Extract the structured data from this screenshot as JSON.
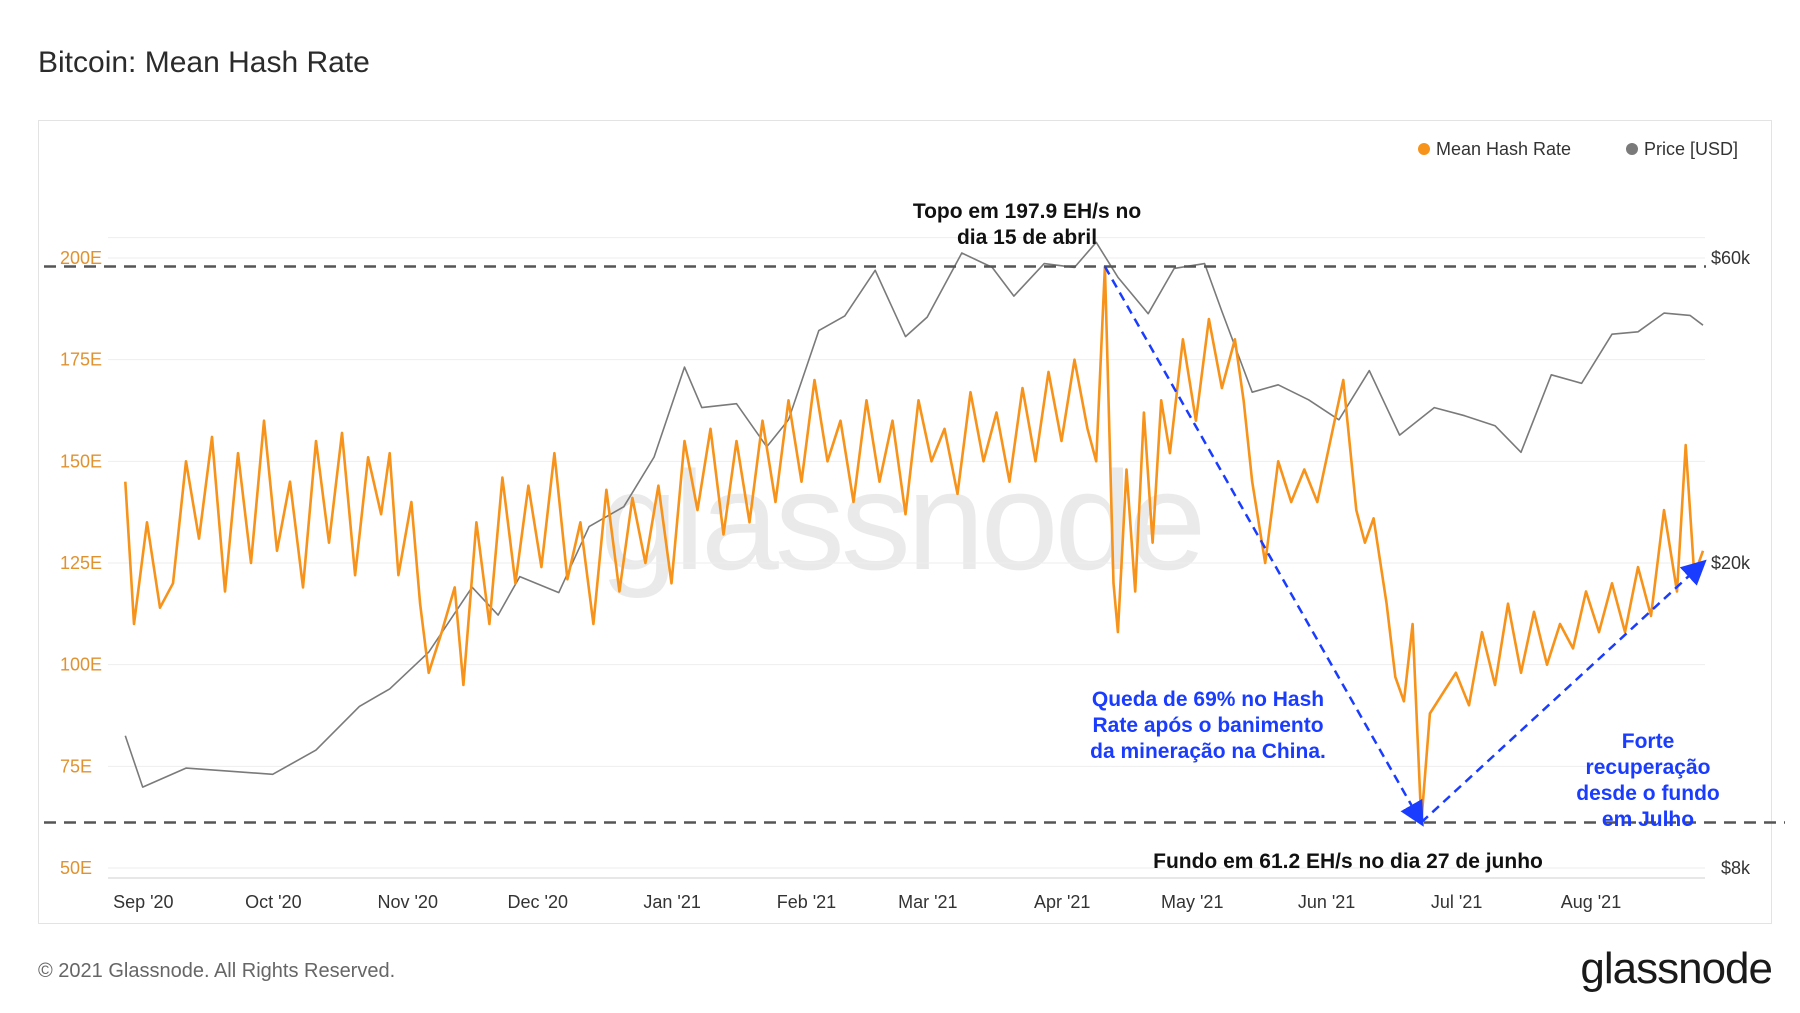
{
  "page": {
    "title": "Bitcoin: Mean Hash Rate",
    "footer": "© 2021 Glassnode. All Rights Reserved.",
    "logo": "glassnode",
    "watermark": "glassnode"
  },
  "colors": {
    "hash": "#f7931a",
    "price": "#7a7a7a",
    "annotation_blue": "#1a3cff",
    "grid": "#eeeeee"
  },
  "chart_data": {
    "type": "line",
    "legend": [
      {
        "label": "Mean Hash Rate",
        "color": "#f7931a"
      },
      {
        "label": "Price [USD]",
        "color": "#7a7a7a"
      }
    ],
    "legend_position": "top-right",
    "x_ticks": [
      "Sep '20",
      "Oct '20",
      "Nov '20",
      "Dec '20",
      "Jan '21",
      "Feb '21",
      "Mar '21",
      "Apr '21",
      "May '21",
      "Jun '21",
      "Jul '21",
      "Aug '21"
    ],
    "y_left_ticks": [
      "50E",
      "75E",
      "100E",
      "125E",
      "150E",
      "175E",
      "200E"
    ],
    "y_right_ticks": [
      "$8k",
      "$20k",
      "$60k"
    ],
    "y_left_range": [
      50,
      205
    ],
    "x_range": [
      "2020-08-28",
      "2021-08-31"
    ],
    "hash_keypoints": [
      [
        "2020-09-01",
        145
      ],
      [
        "2020-09-03",
        110
      ],
      [
        "2020-09-06",
        135
      ],
      [
        "2020-09-09",
        114
      ],
      [
        "2020-09-12",
        120
      ],
      [
        "2020-09-15",
        150
      ],
      [
        "2020-09-18",
        131
      ],
      [
        "2020-09-21",
        156
      ],
      [
        "2020-09-24",
        118
      ],
      [
        "2020-09-27",
        152
      ],
      [
        "2020-09-30",
        125
      ],
      [
        "2020-10-03",
        160
      ],
      [
        "2020-10-06",
        128
      ],
      [
        "2020-10-09",
        145
      ],
      [
        "2020-10-12",
        119
      ],
      [
        "2020-10-15",
        155
      ],
      [
        "2020-10-18",
        130
      ],
      [
        "2020-10-21",
        157
      ],
      [
        "2020-10-24",
        122
      ],
      [
        "2020-10-27",
        151
      ],
      [
        "2020-10-30",
        137
      ],
      [
        "2020-11-01",
        152
      ],
      [
        "2020-11-03",
        122
      ],
      [
        "2020-11-06",
        140
      ],
      [
        "2020-11-08",
        115
      ],
      [
        "2020-11-10",
        98
      ],
      [
        "2020-11-13",
        108
      ],
      [
        "2020-11-16",
        119
      ],
      [
        "2020-11-18",
        95
      ],
      [
        "2020-11-21",
        135
      ],
      [
        "2020-11-24",
        110
      ],
      [
        "2020-11-27",
        146
      ],
      [
        "2020-11-30",
        120
      ],
      [
        "2020-12-03",
        144
      ],
      [
        "2020-12-06",
        124
      ],
      [
        "2020-12-09",
        152
      ],
      [
        "2020-12-12",
        121
      ],
      [
        "2020-12-15",
        135
      ],
      [
        "2020-12-18",
        110
      ],
      [
        "2020-12-21",
        143
      ],
      [
        "2020-12-24",
        118
      ],
      [
        "2020-12-27",
        141
      ],
      [
        "2020-12-30",
        125
      ],
      [
        "2021-01-02",
        144
      ],
      [
        "2021-01-05",
        120
      ],
      [
        "2021-01-08",
        155
      ],
      [
        "2021-01-11",
        138
      ],
      [
        "2021-01-14",
        158
      ],
      [
        "2021-01-17",
        132
      ],
      [
        "2021-01-20",
        155
      ],
      [
        "2021-01-23",
        135
      ],
      [
        "2021-01-26",
        160
      ],
      [
        "2021-01-29",
        140
      ],
      [
        "2021-02-01",
        165
      ],
      [
        "2021-02-04",
        145
      ],
      [
        "2021-02-07",
        170
      ],
      [
        "2021-02-10",
        150
      ],
      [
        "2021-02-13",
        160
      ],
      [
        "2021-02-16",
        140
      ],
      [
        "2021-02-19",
        165
      ],
      [
        "2021-02-22",
        145
      ],
      [
        "2021-02-25",
        160
      ],
      [
        "2021-02-28",
        137
      ],
      [
        "2021-03-03",
        165
      ],
      [
        "2021-03-06",
        150
      ],
      [
        "2021-03-09",
        158
      ],
      [
        "2021-03-12",
        142
      ],
      [
        "2021-03-15",
        167
      ],
      [
        "2021-03-18",
        150
      ],
      [
        "2021-03-21",
        162
      ],
      [
        "2021-03-24",
        145
      ],
      [
        "2021-03-27",
        168
      ],
      [
        "2021-03-30",
        150
      ],
      [
        "2021-04-02",
        172
      ],
      [
        "2021-04-05",
        155
      ],
      [
        "2021-04-08",
        175
      ],
      [
        "2021-04-11",
        158
      ],
      [
        "2021-04-13",
        150
      ],
      [
        "2021-04-15",
        197.9
      ],
      [
        "2021-04-17",
        120
      ],
      [
        "2021-04-18",
        108
      ],
      [
        "2021-04-20",
        148
      ],
      [
        "2021-04-22",
        118
      ],
      [
        "2021-04-24",
        162
      ],
      [
        "2021-04-26",
        130
      ],
      [
        "2021-04-28",
        165
      ],
      [
        "2021-04-30",
        152
      ],
      [
        "2021-05-03",
        180
      ],
      [
        "2021-05-06",
        160
      ],
      [
        "2021-05-09",
        185
      ],
      [
        "2021-05-12",
        168
      ],
      [
        "2021-05-15",
        180
      ],
      [
        "2021-05-17",
        165
      ],
      [
        "2021-05-19",
        145
      ],
      [
        "2021-05-22",
        125
      ],
      [
        "2021-05-25",
        150
      ],
      [
        "2021-05-28",
        140
      ],
      [
        "2021-05-31",
        148
      ],
      [
        "2021-06-03",
        140
      ],
      [
        "2021-06-06",
        155
      ],
      [
        "2021-06-09",
        170
      ],
      [
        "2021-06-12",
        138
      ],
      [
        "2021-06-14",
        130
      ],
      [
        "2021-06-16",
        136
      ],
      [
        "2021-06-19",
        115
      ],
      [
        "2021-06-21",
        97
      ],
      [
        "2021-06-23",
        91
      ],
      [
        "2021-06-25",
        110
      ],
      [
        "2021-06-27",
        61.2
      ],
      [
        "2021-06-29",
        88
      ],
      [
        "2021-07-02",
        93
      ],
      [
        "2021-07-05",
        98
      ],
      [
        "2021-07-08",
        90
      ],
      [
        "2021-07-11",
        108
      ],
      [
        "2021-07-14",
        95
      ],
      [
        "2021-07-17",
        115
      ],
      [
        "2021-07-20",
        98
      ],
      [
        "2021-07-23",
        113
      ],
      [
        "2021-07-26",
        100
      ],
      [
        "2021-07-29",
        110
      ],
      [
        "2021-08-01",
        104
      ],
      [
        "2021-08-04",
        118
      ],
      [
        "2021-08-07",
        108
      ],
      [
        "2021-08-10",
        120
      ],
      [
        "2021-08-13",
        108
      ],
      [
        "2021-08-16",
        124
      ],
      [
        "2021-08-19",
        112
      ],
      [
        "2021-08-22",
        138
      ],
      [
        "2021-08-25",
        118
      ],
      [
        "2021-08-27",
        154
      ],
      [
        "2021-08-29",
        122
      ],
      [
        "2021-08-31",
        128
      ]
    ],
    "price_keypoints": [
      [
        "2020-09-01",
        11900
      ],
      [
        "2020-09-05",
        10200
      ],
      [
        "2020-09-15",
        10800
      ],
      [
        "2020-09-25",
        10700
      ],
      [
        "2020-10-05",
        10600
      ],
      [
        "2020-10-15",
        11400
      ],
      [
        "2020-10-25",
        13000
      ],
      [
        "2020-11-01",
        13700
      ],
      [
        "2020-11-10",
        15300
      ],
      [
        "2020-11-20",
        18600
      ],
      [
        "2020-11-26",
        17100
      ],
      [
        "2020-12-01",
        19200
      ],
      [
        "2020-12-10",
        18300
      ],
      [
        "2020-12-17",
        22800
      ],
      [
        "2020-12-25",
        24500
      ],
      [
        "2021-01-01",
        29300
      ],
      [
        "2021-01-08",
        40500
      ],
      [
        "2021-01-12",
        35000
      ],
      [
        "2021-01-20",
        35500
      ],
      [
        "2021-01-27",
        30400
      ],
      [
        "2021-02-01",
        33500
      ],
      [
        "2021-02-08",
        46200
      ],
      [
        "2021-02-14",
        48700
      ],
      [
        "2021-02-21",
        57400
      ],
      [
        "2021-02-28",
        45200
      ],
      [
        "2021-03-05",
        48500
      ],
      [
        "2021-03-13",
        61100
      ],
      [
        "2021-03-20",
        58000
      ],
      [
        "2021-03-25",
        52300
      ],
      [
        "2021-04-01",
        58800
      ],
      [
        "2021-04-08",
        58000
      ],
      [
        "2021-04-13",
        63500
      ],
      [
        "2021-04-18",
        56000
      ],
      [
        "2021-04-25",
        49100
      ],
      [
        "2021-05-01",
        57800
      ],
      [
        "2021-05-08",
        58800
      ],
      [
        "2021-05-12",
        49500
      ],
      [
        "2021-05-19",
        37000
      ],
      [
        "2021-05-25",
        38000
      ],
      [
        "2021-06-01",
        36000
      ],
      [
        "2021-06-08",
        33500
      ],
      [
        "2021-06-15",
        40000
      ],
      [
        "2021-06-22",
        31700
      ],
      [
        "2021-06-30",
        35000
      ],
      [
        "2021-07-07",
        34000
      ],
      [
        "2021-07-14",
        32800
      ],
      [
        "2021-07-20",
        29800
      ],
      [
        "2021-07-27",
        39400
      ],
      [
        "2021-08-03",
        38200
      ],
      [
        "2021-08-10",
        45600
      ],
      [
        "2021-08-16",
        46000
      ],
      [
        "2021-08-22",
        49200
      ],
      [
        "2021-08-28",
        48800
      ],
      [
        "2021-08-31",
        47100
      ]
    ],
    "price_scale_anchors": [
      [
        8000,
        50
      ],
      [
        20000,
        125
      ],
      [
        60000,
        200
      ]
    ],
    "reference_lines": [
      {
        "value": 197.9,
        "label": "Topo em 197.9 EH/s no dia 15 de abril"
      },
      {
        "value": 61.2,
        "label": "Fundo em 61.2 EH/s no dia 27 de junho"
      }
    ],
    "annotations": [
      {
        "text": "Queda de 69% no Hash Rate após o banimento da mineração na China.",
        "arrow_from": [
          "2021-04-15",
          197.9
        ],
        "arrow_to": [
          "2021-06-27",
          61.2
        ]
      },
      {
        "text": "Forte recuperação desde o fundo em Julho",
        "arrow_from": [
          "2021-06-27",
          61.2
        ],
        "arrow_to": [
          "2021-08-31",
          125
        ]
      }
    ],
    "labels": {
      "top_line1": "Topo em 197.9 EH/s no",
      "top_line2": "dia 15 de abril",
      "bottom": "Fundo em 61.2 EH/s no dia 27 de junho",
      "drop_lines": [
        "Queda de 69% no Hash",
        "Rate após o banimento",
        "da mineração na China."
      ],
      "recovery_lines": [
        "Forte",
        "recuperação",
        "desde o fundo",
        "em Julho"
      ]
    }
  }
}
